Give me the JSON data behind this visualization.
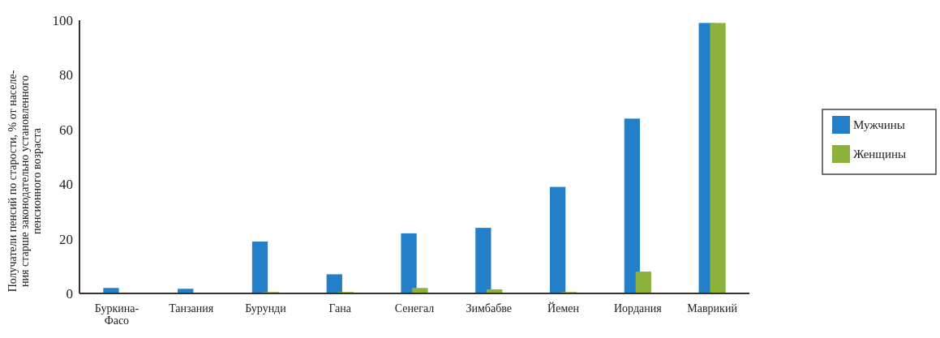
{
  "chart_data": {
    "type": "bar",
    "ylabel": "Получатели пенсий по старости, % от населе-\nния старше законодательно установленного\nпенсионного возраста",
    "categories": [
      "Буркина-\nФасо",
      "Танзания",
      "Бурунди",
      "Гана",
      "Сенегал",
      "Зимбабве",
      "Йемен",
      "Иордания",
      "Маврикий"
    ],
    "series": [
      {
        "name": "Мужчины",
        "color": "#2380c8",
        "values": [
          2,
          1.7,
          19,
          7,
          22,
          24,
          39,
          64,
          99
        ]
      },
      {
        "name": "Женщины",
        "color": "#8cb23c",
        "values": [
          0,
          0,
          0.5,
          0.5,
          2,
          1.5,
          0.5,
          8,
          99
        ]
      }
    ],
    "ylim": [
      0,
      100
    ],
    "yticks": [
      0,
      20,
      40,
      60,
      80,
      100
    ],
    "legend": "right"
  }
}
